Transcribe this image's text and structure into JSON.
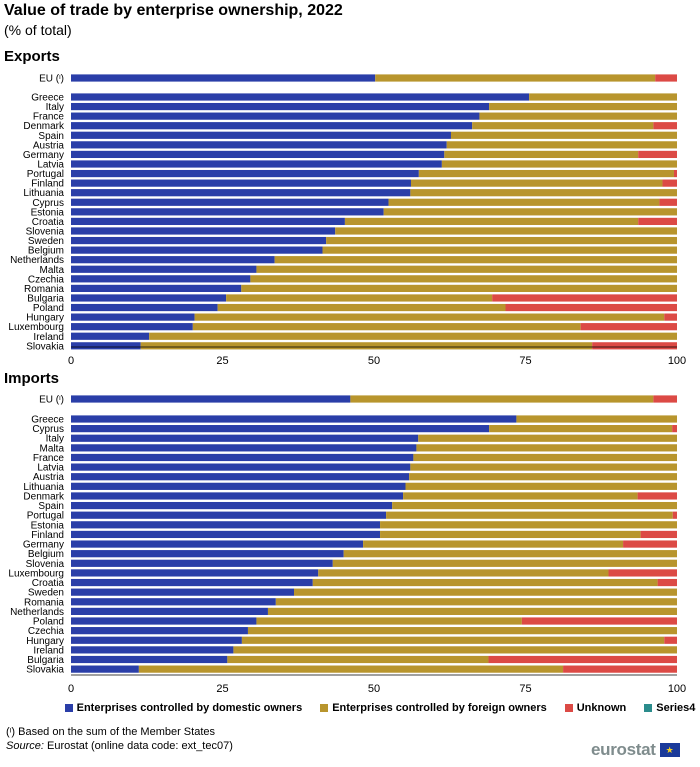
{
  "title": "Value of trade by enterprise ownership, 2022",
  "subtitle": "(% of total)",
  "footnote": "(ᶦ) Based on the sum of the Member States",
  "source_label": "Source:",
  "source_text": "Eurostat (online data code: ext_tec07)",
  "logo_text": "eurostat",
  "logo_flag_glyph": "★",
  "colors": {
    "domestic": "#2a3ea8",
    "foreign": "#b8952d",
    "unknown": "#dc4a45",
    "series4": "#2b8c8c"
  },
  "legend": [
    {
      "label": "Enterprises controlled by domestic owners",
      "color": "#2a3ea8"
    },
    {
      "label": "Enterprises controlled by foreign owners",
      "color": "#b8952d"
    },
    {
      "label": "Unknown",
      "color": "#dc4a45"
    },
    {
      "label": "Series4",
      "color": "#2b8c8c"
    }
  ],
  "chart_data": [
    {
      "type": "bar",
      "orientation": "horizontal",
      "stacked": true,
      "title": "Exports",
      "xlim": [
        0,
        100
      ],
      "xticks": [
        0,
        25,
        50,
        75,
        100
      ],
      "categories": [
        "EU (ᶦ)",
        "Greece",
        "Italy",
        "France",
        "Denmark",
        "Spain",
        "Austria",
        "Germany",
        "Latvia",
        "Portugal",
        "Finland",
        "Lithuania",
        "Cyprus",
        "Estonia",
        "Croatia",
        "Slovenia",
        "Sweden",
        "Belgium",
        "Netherlands",
        "Malta",
        "Czechia",
        "Romania",
        "Bulgaria",
        "Poland",
        "Hungary",
        "Luxembourg",
        "Ireland",
        "Slovakia"
      ],
      "series": [
        {
          "name": "Enterprises controlled by domestic owners",
          "values": [
            50.2,
            75.6,
            69.0,
            67.4,
            66.2,
            62.7,
            62.0,
            61.6,
            61.2,
            57.4,
            56.1,
            56.0,
            52.4,
            51.6,
            45.2,
            43.6,
            42.1,
            41.5,
            33.6,
            30.6,
            29.6,
            28.1,
            25.6,
            24.2,
            20.4,
            20.1,
            12.9,
            11.5
          ]
        },
        {
          "name": "Enterprises controlled by foreign owners",
          "values": [
            46.2,
            24.4,
            31.0,
            32.6,
            29.9,
            37.3,
            38.0,
            32.0,
            38.8,
            42.1,
            41.5,
            44.0,
            44.7,
            48.4,
            48.4,
            56.4,
            57.9,
            58.5,
            66.4,
            69.4,
            70.4,
            71.9,
            43.9,
            47.5,
            77.5,
            64.0,
            87.1,
            74.5
          ]
        },
        {
          "name": "Unknown",
          "values": [
            3.6,
            0.0,
            0.0,
            0.0,
            3.9,
            0.0,
            0.0,
            6.4,
            0.0,
            0.5,
            2.4,
            0.0,
            2.9,
            0.0,
            6.4,
            0.0,
            0.0,
            0.0,
            0.0,
            0.0,
            0.0,
            0.0,
            30.5,
            28.3,
            2.1,
            15.9,
            0.0,
            14.0
          ]
        },
        {
          "name": "Series4",
          "values": [
            0,
            0,
            0,
            0,
            0,
            0,
            0,
            0,
            0,
            0,
            0,
            0,
            0,
            0,
            0,
            0,
            0,
            0,
            0,
            0,
            0,
            0,
            0,
            0,
            0,
            0,
            0,
            0
          ]
        }
      ]
    },
    {
      "type": "bar",
      "orientation": "horizontal",
      "stacked": true,
      "title": "Imports",
      "xlim": [
        0,
        100
      ],
      "xticks": [
        0,
        25,
        50,
        75,
        100
      ],
      "categories": [
        "EU (ᶦ)",
        "Greece",
        "Cyprus",
        "Italy",
        "Malta",
        "France",
        "Latvia",
        "Austria",
        "Lithuania",
        "Denmark",
        "Spain",
        "Portugal",
        "Estonia",
        "Finland",
        "Germany",
        "Belgium",
        "Slovenia",
        "Luxembourg",
        "Croatia",
        "Sweden",
        "Romania",
        "Netherlands",
        "Poland",
        "Czechia",
        "Hungary",
        "Ireland",
        "Bulgaria",
        "Slovakia"
      ],
      "series": [
        {
          "name": "Enterprises controlled by domestic owners",
          "values": [
            46.1,
            73.5,
            69.0,
            57.3,
            57.0,
            56.5,
            56.0,
            55.8,
            55.2,
            54.8,
            53.0,
            52.0,
            51.0,
            51.0,
            48.2,
            45.0,
            43.2,
            40.8,
            39.9,
            36.8,
            33.8,
            32.5,
            30.6,
            29.2,
            28.2,
            26.8,
            25.8,
            11.2
          ]
        },
        {
          "name": "Enterprises controlled by foreign owners",
          "values": [
            50.0,
            26.5,
            30.2,
            42.7,
            43.0,
            43.5,
            44.0,
            44.2,
            44.8,
            38.7,
            47.0,
            47.3,
            49.0,
            43.0,
            42.9,
            55.0,
            56.8,
            47.9,
            56.9,
            63.2,
            66.2,
            67.5,
            43.8,
            70.8,
            69.7,
            73.2,
            43.1,
            70.0
          ]
        },
        {
          "name": "Unknown",
          "values": [
            3.9,
            0.0,
            0.8,
            0.0,
            0.0,
            0.0,
            0.0,
            0.0,
            0.0,
            6.5,
            0.0,
            0.7,
            0.0,
            6.0,
            8.9,
            0.0,
            0.0,
            11.3,
            3.2,
            0.0,
            0.0,
            0.0,
            25.6,
            0.0,
            2.1,
            0.0,
            31.1,
            18.8
          ]
        },
        {
          "name": "Series4",
          "values": [
            0,
            0,
            0,
            0,
            0,
            0,
            0,
            0,
            0,
            0,
            0,
            0,
            0,
            0,
            0,
            0,
            0,
            0,
            0,
            0,
            0,
            0,
            0,
            0,
            0,
            0,
            0,
            0
          ]
        }
      ]
    }
  ]
}
